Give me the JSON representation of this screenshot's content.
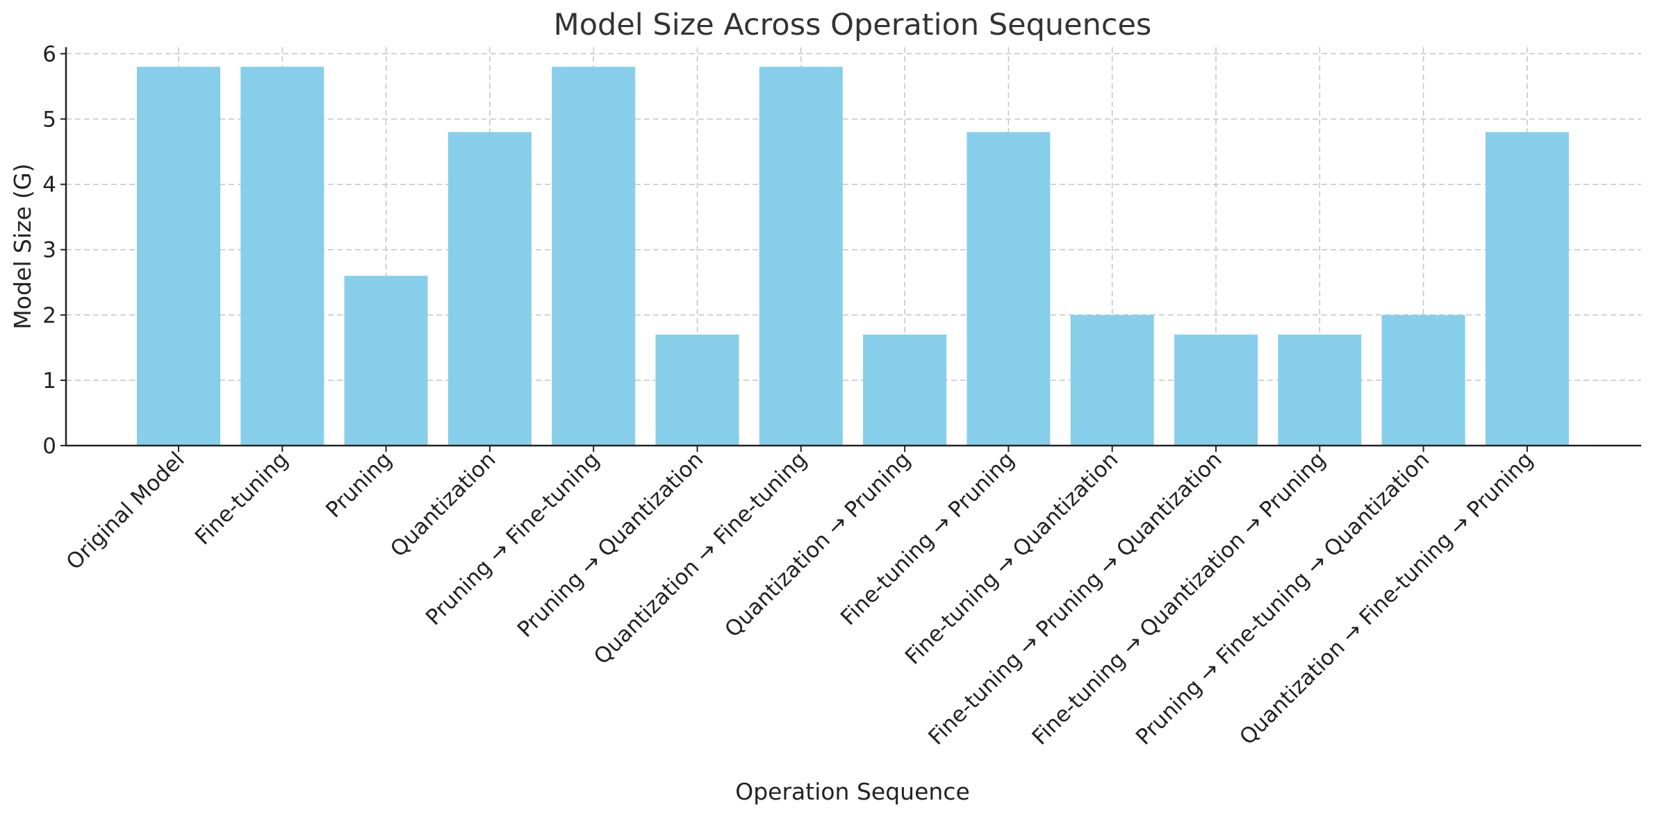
{
  "chart_data": {
    "type": "bar",
    "title": "Model Size Across Operation Sequences",
    "xlabel": "Operation Sequence",
    "ylabel": "Model Size (G)",
    "ylim": [
      0,
      6.1
    ],
    "yticks": [
      0,
      1,
      2,
      3,
      4,
      5,
      6
    ],
    "grid": true,
    "bar_color": "#87ceeb",
    "categories": [
      "Original Model",
      "Fine-tuning",
      "Pruning",
      "Quantization",
      "Pruning → Fine-tuning",
      "Pruning → Quantization",
      "Quantization → Fine-tuning",
      "Quantization → Pruning",
      "Fine-tuning → Pruning",
      "Fine-tuning → Quantization",
      "Fine-tuning → Pruning → Quantization",
      "Fine-tuning → Quantization → Pruning",
      "Pruning → Fine-tuning → Quantization",
      "Quantization → Fine-tuning → Pruning"
    ],
    "values": [
      5.8,
      5.8,
      2.6,
      4.8,
      5.8,
      1.7,
      5.8,
      1.7,
      4.8,
      2.0,
      1.7,
      1.7,
      2.0,
      4.8
    ]
  }
}
